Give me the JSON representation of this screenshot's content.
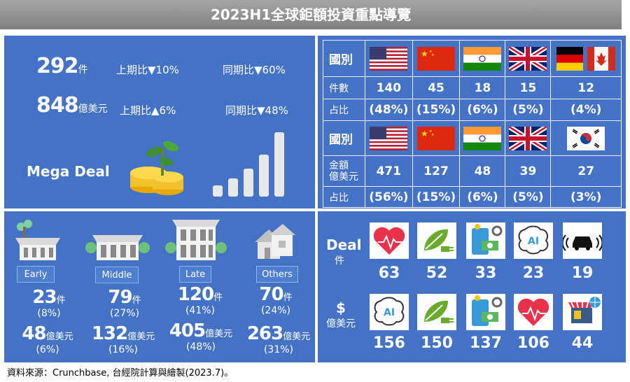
{
  "title": "2023H1全球鉅額投資重點導覽",
  "summary": {
    "count_value": "292",
    "count_unit": "件",
    "count_qoq": "上期比▼10%",
    "count_yoy": "同期比▼60%",
    "amount_value": "848",
    "amount_unit": "億美元",
    "amount_qoq": "上期比▲6%",
    "amount_yoy": "同期比▼48%",
    "mega_deal": "Mega Deal"
  },
  "country_table": {
    "header_label": "國別",
    "count_label": "件數",
    "share_label": "占比",
    "amount_label": "金額\n億美元",
    "by_count": {
      "flags": [
        "us",
        "cn",
        "in",
        "uk",
        "de-ca"
      ],
      "counts": [
        "140",
        "45",
        "18",
        "15",
        "12"
      ],
      "shares": [
        "(48%)",
        "(15%)",
        "(6%)",
        "(5%)",
        "(4%)"
      ]
    },
    "by_amount": {
      "flags": [
        "us",
        "cn",
        "in",
        "uk",
        "kr"
      ],
      "amounts": [
        "471",
        "127",
        "48",
        "39",
        "27"
      ],
      "shares": [
        "(56%)",
        "(15%)",
        "(6%)",
        "(5%)",
        "(3%)"
      ]
    }
  },
  "stages": [
    {
      "label": "Early",
      "count": "23",
      "count_unit": "件",
      "count_share": "(8%)",
      "amount": "48",
      "amount_unit": "億美元",
      "amount_share": "(6%)"
    },
    {
      "label": "Middle",
      "count": "79",
      "count_unit": "件",
      "count_share": "(27%)",
      "amount": "132",
      "amount_unit": "億美元",
      "amount_share": "(16%)"
    },
    {
      "label": "Late",
      "count": "120",
      "count_unit": "件",
      "count_share": "(41%)",
      "amount": "405",
      "amount_unit": "億美元",
      "amount_share": "(48%)"
    },
    {
      "label": "Others",
      "count": "70",
      "count_unit": "件",
      "count_share": "(24%)",
      "amount": "263",
      "amount_unit": "億美元",
      "amount_share": "(31%)"
    }
  ],
  "sectors": {
    "deal_label": "Deal",
    "deal_unit": "件",
    "dollar_label": "$",
    "dollar_unit": "億美元",
    "deal_icons": [
      "health-heart-icon",
      "green-energy-icon",
      "fintech-icon",
      "ai-brain-icon",
      "car-icon"
    ],
    "deal_values": [
      "63",
      "52",
      "33",
      "23",
      "19"
    ],
    "dollar_icons": [
      "ai-brain-icon",
      "green-energy-icon",
      "fintech-icon",
      "health-heart-icon",
      "ecommerce-icon"
    ],
    "dollar_values": [
      "156",
      "150",
      "137",
      "106",
      "44"
    ]
  },
  "source": "資料來源：Crunchbase, 台經院計算與繪製(2023.7)。",
  "colors": {
    "panel": "#4472c4",
    "title_bar": "#8c8c8c",
    "heart": "#e8314a",
    "leaf": "#6aab2e"
  }
}
